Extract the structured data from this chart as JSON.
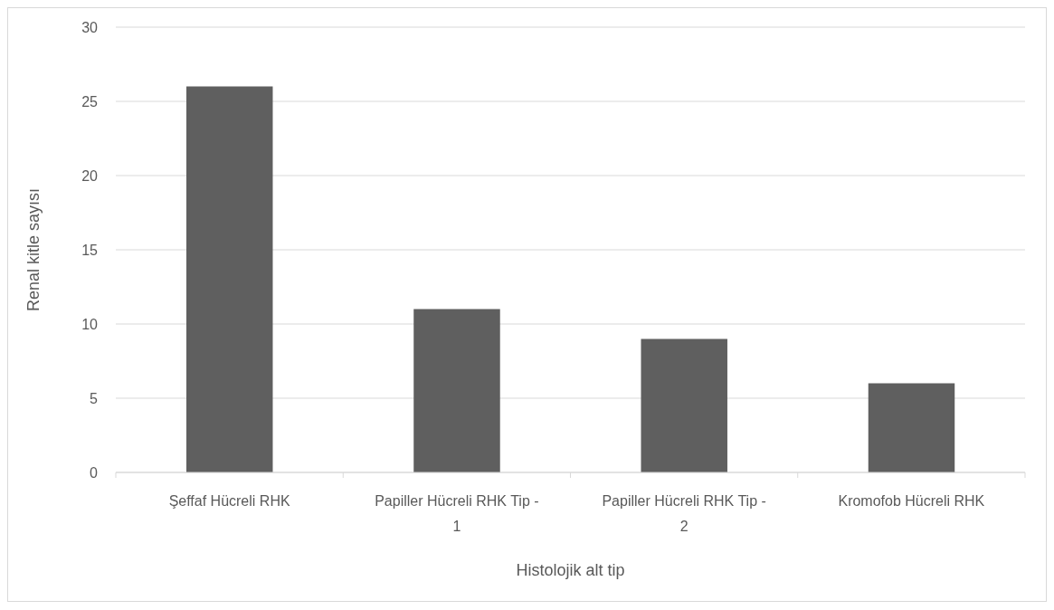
{
  "chart_data": {
    "type": "bar",
    "xlabel": "Histolojik alt tip",
    "ylabel": "Renal kitle sayısı",
    "categories": [
      "Şeffaf Hücreli RHK",
      "Papiller Hücreli RHK Tip - 1",
      "Papiller Hücreli RHK Tip - 2",
      "Kromofob Hücreli RHK"
    ],
    "values": [
      26,
      11,
      9,
      6
    ],
    "color": "#5f5f5f",
    "ylim": [
      0,
      30
    ],
    "yticks": [
      0,
      5,
      10,
      15,
      20,
      25,
      30
    ],
    "grid": "y"
  }
}
